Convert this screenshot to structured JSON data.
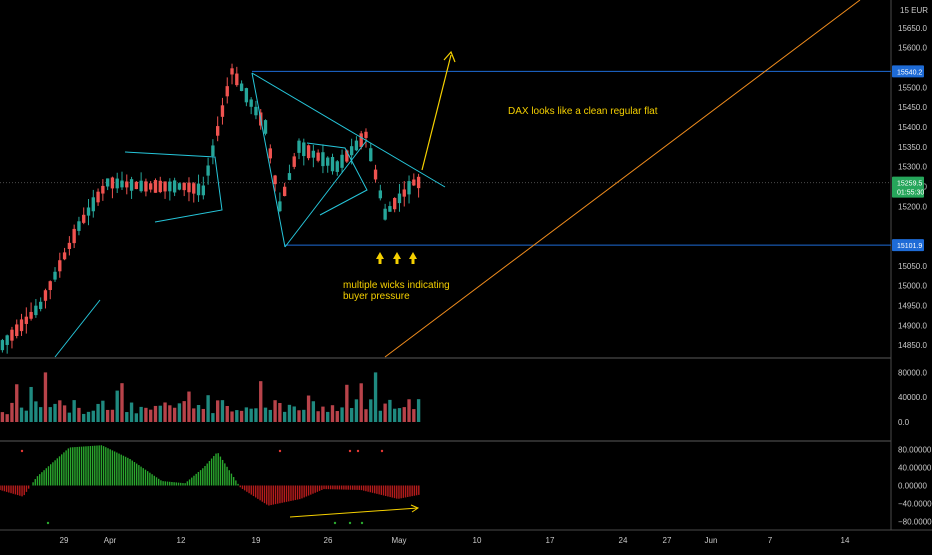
{
  "chart_data": [
    {
      "type": "candlestick",
      "title": "",
      "currency": "EUR",
      "y_unit_label": "15 EUR",
      "ylim": [
        14820,
        15720
      ],
      "y_ticks": [
        14850,
        14900,
        14950,
        15000,
        15050,
        15200,
        15250,
        15300,
        15350,
        15400,
        15450,
        15500,
        15600,
        15650
      ],
      "y_tick_labels": [
        "14850.0",
        "14900.0",
        "14950.0",
        "15000.0",
        "15050.0",
        "15200.0",
        "15250.0",
        "15300.0",
        "15350.0",
        "15400.0",
        "15450.0",
        "15500.0",
        "15600.0",
        "15650.0"
      ],
      "x_tick_labels": [
        "29",
        "Apr",
        "12",
        "19",
        "26",
        "May",
        "10",
        "17",
        "24",
        "27",
        "Jun",
        "7",
        "14"
      ],
      "price_badges": [
        {
          "text": "15540.2",
          "value": 15540.2,
          "color": "#1e6bd6"
        },
        {
          "text": "15259.5",
          "value": 15259.5,
          "color": "#26a65b"
        },
        {
          "text": "01:55:30",
          "value": 15237,
          "color": "#26a65b"
        },
        {
          "text": "15101.9",
          "value": 15101.9,
          "color": "#1e6bd6"
        }
      ],
      "key_levels": {
        "resistance": 15540.2,
        "support": 15101.9,
        "current": 15259.5
      },
      "candles_approx": {
        "start": 14850,
        "peak": 15540,
        "end": 15259.5,
        "path": [
          [
            0,
            14850
          ],
          [
            8,
            14950
          ],
          [
            16,
            15150
          ],
          [
            22,
            15260
          ],
          [
            30,
            15250
          ],
          [
            38,
            15250
          ],
          [
            42,
            15240
          ],
          [
            48,
            15540
          ],
          [
            55,
            15400
          ],
          [
            58,
            15200
          ],
          [
            62,
            15350
          ],
          [
            70,
            15300
          ],
          [
            76,
            15380
          ],
          [
            80,
            15180
          ],
          [
            86,
            15260
          ]
        ]
      },
      "annotations": [
        {
          "text": "DAX looks like a clean regular flat"
        },
        {
          "text": "multiple wicks indicating"
        },
        {
          "text": "buyer pressure"
        }
      ],
      "colors": {
        "up": "#26a69a",
        "down": "#ef5350",
        "trend": "#26c6da",
        "level": "#1e6bd6",
        "note": "#f5d000",
        "diag": "#f08c1d"
      }
    },
    {
      "type": "bar",
      "name": "volume",
      "ylim": [
        0,
        100000
      ],
      "y_ticks": [
        0,
        40000,
        80000
      ],
      "y_tick_labels": [
        "0.0",
        "40000.0",
        "80000.0"
      ]
    },
    {
      "type": "bar",
      "name": "oscillator",
      "ylim": [
        -95,
        95
      ],
      "y_ticks": [
        80,
        40,
        0,
        -40,
        -80
      ],
      "y_tick_labels": [
        "80.00000",
        "40.00000",
        "0.00000",
        "−40.00000",
        "−80.00000"
      ],
      "values_approx_path": [
        [
          0,
          -10
        ],
        [
          5,
          -25
        ],
        [
          8,
          20
        ],
        [
          15,
          85
        ],
        [
          22,
          90
        ],
        [
          28,
          60
        ],
        [
          35,
          10
        ],
        [
          40,
          5
        ],
        [
          44,
          40
        ],
        [
          47,
          75
        ],
        [
          52,
          -5
        ],
        [
          58,
          -45
        ],
        [
          65,
          -30
        ],
        [
          70,
          -8
        ],
        [
          78,
          -10
        ],
        [
          86,
          -30
        ],
        [
          91,
          -20
        ]
      ]
    }
  ]
}
